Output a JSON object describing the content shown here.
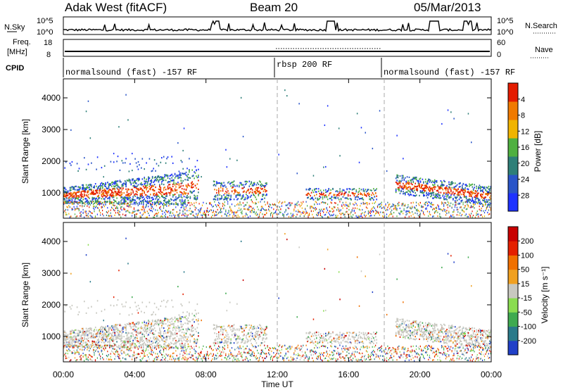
{
  "header": {
    "station": "Adak West (fitACF)",
    "beam": "Beam 20",
    "date": "05/Mar/2013"
  },
  "top_panels": {
    "noise": {
      "left_label": "N.Sky",
      "right_label": "N.Search",
      "scale_top": "10^5",
      "scale_bottom": "10^0"
    },
    "freq": {
      "label_line1": "Freq.",
      "label_line2": "[MHz]",
      "ticks_left": [
        "18",
        "8"
      ],
      "right_label": "Nave",
      "ticks_right": [
        "60",
        "0"
      ]
    },
    "cpid": {
      "label": "CPID",
      "segments": [
        {
          "label": "normalsound (fast) -157 RF",
          "start_hour": 0
        },
        {
          "label": "rbsp 200 RF",
          "start_hour": 12
        },
        {
          "label": "normalsound (fast) -157 RF",
          "start_hour": 18
        }
      ]
    }
  },
  "chart_data": [
    {
      "type": "heatmap",
      "title": "",
      "ylabel": "Slant Range [km]",
      "y_ticks": [
        "1000",
        "2000",
        "3000",
        "4000"
      ],
      "ylim": [
        200,
        4600
      ],
      "colorbar_label": "Power [dB]",
      "colorbar_ticks": [
        "4",
        "8",
        "12",
        "16",
        "20",
        "24",
        "28"
      ],
      "colorbar_colors": [
        "#1e32ff",
        "#2a55c8",
        "#2e7f78",
        "#4fb040",
        "#f0b400",
        "#f07a00",
        "#e41c00"
      ]
    },
    {
      "type": "heatmap",
      "title": "",
      "ylabel": "Slant Range [km]",
      "y_ticks": [
        "1000",
        "2000",
        "3000",
        "4000"
      ],
      "ylim": [
        200,
        4600
      ],
      "colorbar_label": "Velocity [m s⁻¹]",
      "colorbar_ticks": [
        "200",
        "100",
        "50",
        "15",
        "-15",
        "-50",
        "-100",
        "-200"
      ],
      "colorbar_colors": [
        "#2040c8",
        "#2a7a8a",
        "#3faa50",
        "#8adc50",
        "#c8c8c0",
        "#f0a020",
        "#f07000",
        "#e42000",
        "#c80000"
      ]
    }
  ],
  "x_axis": {
    "label": "Time UT",
    "ticks": [
      "00:00",
      "04:00",
      "08:00",
      "12:00",
      "16:00",
      "20:00",
      "00:00"
    ],
    "range_hours": [
      0,
      24
    ]
  }
}
